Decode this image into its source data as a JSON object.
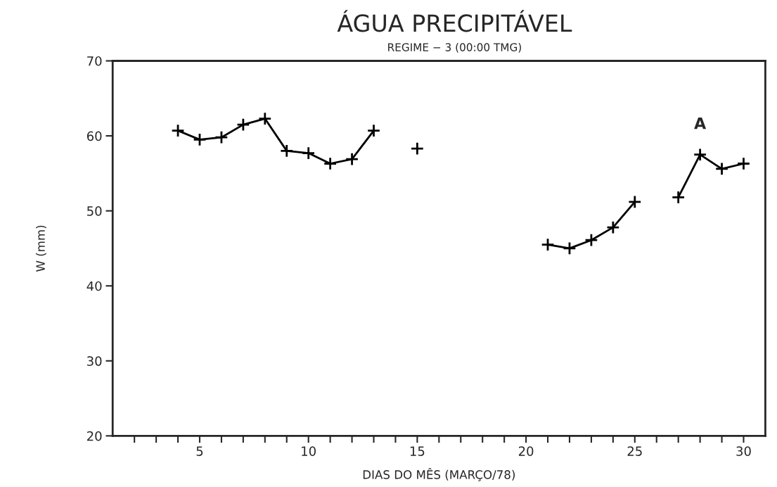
{
  "chart_data": {
    "type": "line",
    "title": "ÁGUA PRECIPITÁVEL",
    "subtitle": "REGIME − 3 (00:00 TMG)",
    "xlabel": "DIAS DO MÊS (MARÇO/78)",
    "ylabel": "W (mm)",
    "x": [
      4,
      5,
      6,
      7,
      8,
      9,
      10,
      11,
      12,
      13,
      14,
      15,
      16,
      17,
      18,
      19,
      20,
      21,
      22,
      23,
      24,
      25,
      26,
      27,
      28,
      29,
      30
    ],
    "series": [
      {
        "color": "#000000",
        "values": [
          60.7,
          59.5,
          59.8,
          61.5,
          62.3,
          58.0,
          57.7,
          56.3,
          56.9,
          60.7,
          null,
          58.3,
          null,
          null,
          null,
          null,
          null,
          45.5,
          45.0,
          46.1,
          47.8,
          51.2,
          null,
          51.8,
          57.5,
          55.6,
          56.3
        ]
      }
    ],
    "xlim": [
      1,
      31
    ],
    "ylim": [
      20,
      70
    ],
    "xticks": [
      {
        "value": 2,
        "label": null
      },
      {
        "value": 3,
        "label": null
      },
      {
        "value": 4,
        "label": null
      },
      5,
      {
        "value": 6,
        "label": null
      },
      {
        "value": 7,
        "label": null
      },
      {
        "value": 8,
        "label": null
      },
      {
        "value": 9,
        "label": null
      },
      10,
      {
        "value": 11,
        "label": null
      },
      {
        "value": 12,
        "label": null
      },
      {
        "value": 13,
        "label": null
      },
      {
        "value": 14,
        "label": null
      },
      15,
      {
        "value": 16,
        "label": null
      },
      {
        "value": 17,
        "label": null
      },
      {
        "value": 18,
        "label": null
      },
      {
        "value": 19,
        "label": null
      },
      20,
      {
        "value": 21,
        "label": null
      },
      {
        "value": 22,
        "label": null
      },
      {
        "value": 23,
        "label": null
      },
      {
        "value": 24,
        "label": null
      },
      25,
      {
        "value": 26,
        "label": null
      },
      {
        "value": 27,
        "label": null
      },
      {
        "value": 28,
        "label": null
      },
      {
        "value": 29,
        "label": null
      },
      30
    ],
    "yticks": [
      20,
      30,
      40,
      50,
      60,
      70
    ],
    "annotations": [
      "A"
    ],
    "marker": "cross",
    "line_style": "solid",
    "grid": false,
    "legend": false
  }
}
